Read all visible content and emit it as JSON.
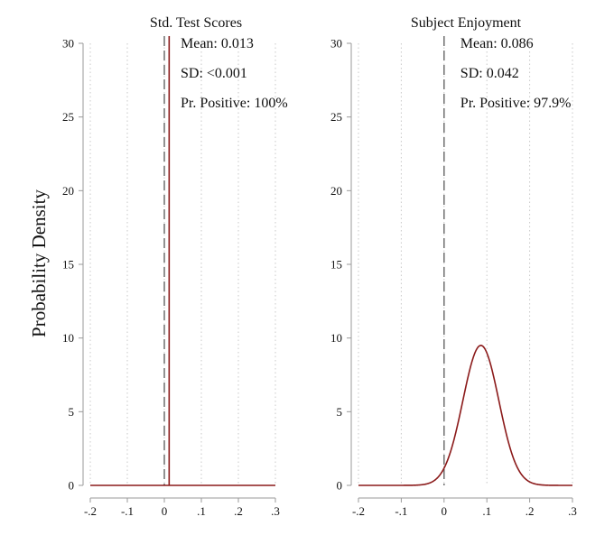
{
  "figure": {
    "ylabel": "Probability Density"
  },
  "chart_data": [
    {
      "type": "line",
      "title": "Std. Test Scores",
      "xlim": [
        -0.2,
        0.3
      ],
      "ylim": [
        0,
        30
      ],
      "x_ticks": [
        -0.2,
        -0.1,
        0,
        0.1,
        0.2,
        0.3
      ],
      "x_tick_labels": [
        "-.2",
        "-.1",
        "0",
        ".1",
        ".2",
        ".3"
      ],
      "y_ticks": [
        0,
        5,
        10,
        15,
        20,
        25,
        30
      ],
      "y_tick_labels": [
        "0",
        "5",
        "10",
        "15",
        "20",
        "25",
        "30"
      ],
      "grid": "vertical dotted",
      "reference_line_x": 0,
      "distribution": {
        "family": "normal",
        "mean": 0.013,
        "sd": 0.0005
      },
      "annotations": [
        "Mean: 0.013",
        "SD: <0.001",
        "Pr. Positive: 100%"
      ],
      "line_color": "#8b1a1a"
    },
    {
      "type": "line",
      "title": "Subject Enjoyment",
      "xlim": [
        -0.2,
        0.3
      ],
      "ylim": [
        0,
        30
      ],
      "x_ticks": [
        -0.2,
        -0.1,
        0,
        0.1,
        0.2,
        0.3
      ],
      "x_tick_labels": [
        "-.2",
        "-.1",
        "0",
        ".1",
        ".2",
        ".3"
      ],
      "y_ticks": [
        0,
        5,
        10,
        15,
        20,
        25,
        30
      ],
      "y_tick_labels": [
        "0",
        "5",
        "10",
        "15",
        "20",
        "25",
        "30"
      ],
      "grid": "vertical dotted",
      "reference_line_x": 0,
      "distribution": {
        "family": "normal",
        "mean": 0.086,
        "sd": 0.042
      },
      "annotations": [
        "Mean: 0.086",
        "SD: 0.042",
        "Pr. Positive: 97.9%"
      ],
      "line_color": "#8b1a1a"
    }
  ]
}
